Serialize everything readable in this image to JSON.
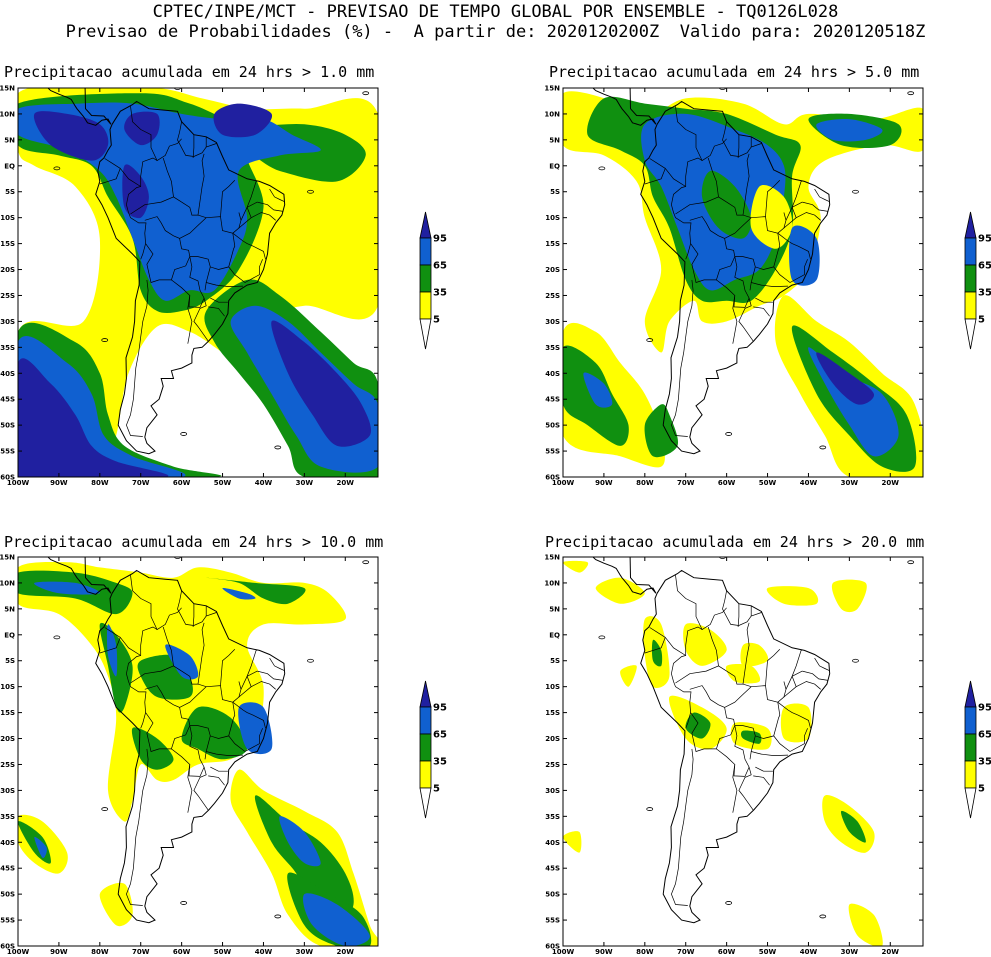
{
  "header": {
    "line1": "CPTEC/INPE/MCT - PREVISAO DE TEMPO GLOBAL POR ENSEMBLE - TQ0126L028",
    "line2": "Previsao de Probabilidades (%) -  A partir de: 2020120200Z  Valido para: 2020120518Z"
  },
  "axes": {
    "lat_labels": [
      "15N",
      "10N",
      "5N",
      "EQ",
      "5S",
      "10S",
      "15S",
      "20S",
      "25S",
      "30S",
      "35S",
      "40S",
      "45S",
      "50S",
      "55S",
      "60S"
    ],
    "lon_labels": [
      "100W",
      "90W",
      "80W",
      "70W",
      "60W",
      "50W",
      "40W",
      "30W",
      "20W"
    ]
  },
  "colorbar": {
    "levels": [
      "5",
      "35",
      "65",
      "95"
    ],
    "colors": {
      "c5": "#ffff00",
      "c35": "#109010",
      "c65": "#1060d0",
      "c95": "#2020a0"
    }
  },
  "panels": [
    {
      "title": "Precipitacao acumulada em 24 hrs > 1.0 mm"
    },
    {
      "title": "Precipitacao acumulada em 24 hrs > 5.0 mm"
    },
    {
      "title": "Precipitacao acumulada em 24 hrs > 10.0 mm"
    },
    {
      "title": "Precipitacao acumulada em 24 hrs > 20.0 mm"
    }
  ]
}
